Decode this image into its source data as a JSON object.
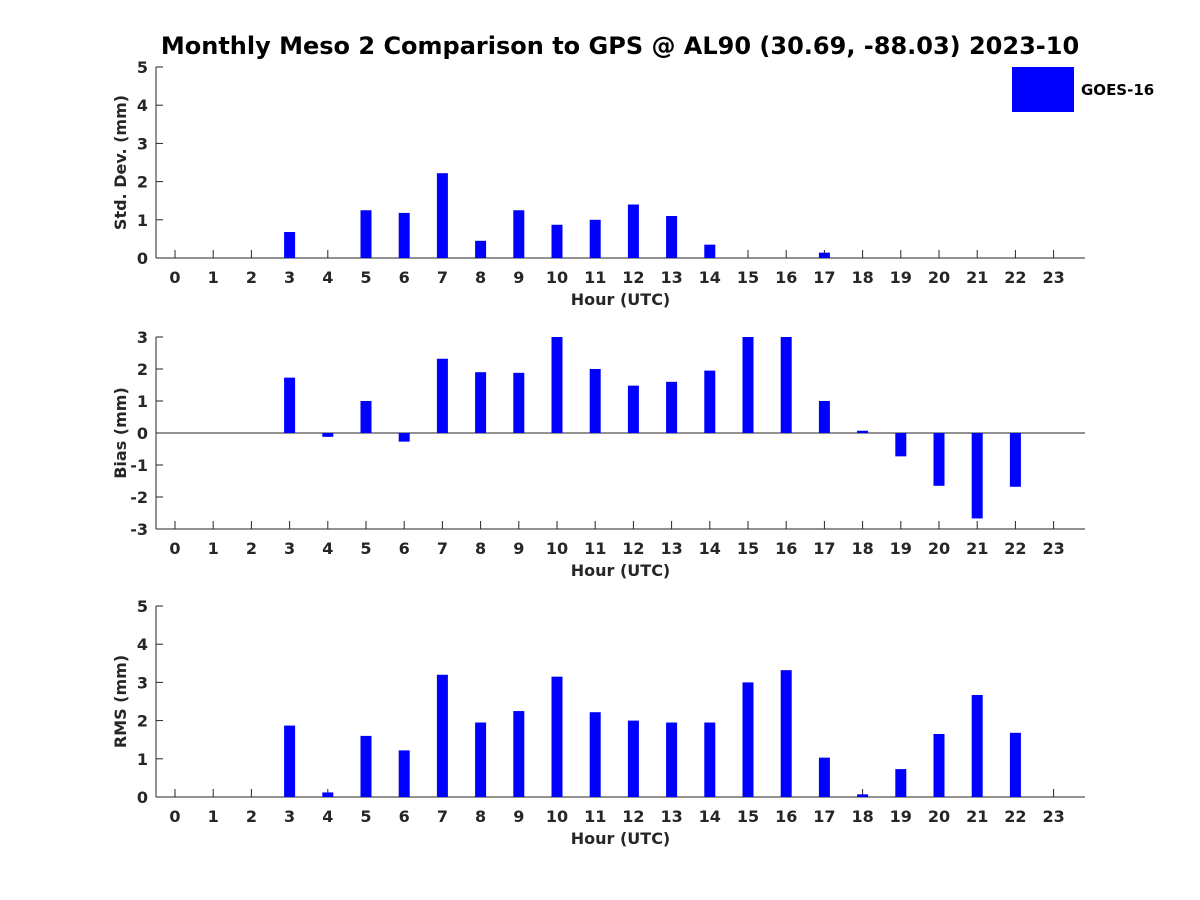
{
  "title": "Monthly Meso 2 Comparison to GPS @ AL90 (30.69, -88.03) 2023-10",
  "legend": {
    "label": "GOES-16",
    "placement": "top-right",
    "color": "#0000ff"
  },
  "colors": {
    "bar": "#0000ff",
    "axis": "#262626"
  },
  "chart_data": [
    {
      "type": "bar",
      "series": [
        {
          "name": "GOES-16"
        }
      ],
      "categories": [
        "0",
        "1",
        "2",
        "3",
        "4",
        "5",
        "6",
        "7",
        "8",
        "9",
        "10",
        "11",
        "12",
        "13",
        "14",
        "15",
        "16",
        "17",
        "18",
        "19",
        "20",
        "21",
        "22",
        "23"
      ],
      "values": [
        null,
        null,
        null,
        0.68,
        null,
        1.25,
        1.18,
        2.22,
        0.45,
        1.25,
        0.87,
        1.0,
        1.4,
        1.1,
        0.35,
        null,
        null,
        0.14,
        null,
        null,
        null,
        null,
        null,
        null
      ],
      "xlabel": "Hour (UTC)",
      "ylabel": "Std. Dev. (mm)",
      "ylim": [
        0,
        5
      ],
      "yticks": [
        "0",
        "1",
        "2",
        "3",
        "4",
        "5"
      ],
      "zero_line": false
    },
    {
      "type": "bar",
      "series": [
        {
          "name": "GOES-16"
        }
      ],
      "categories": [
        "0",
        "1",
        "2",
        "3",
        "4",
        "5",
        "6",
        "7",
        "8",
        "9",
        "10",
        "11",
        "12",
        "13",
        "14",
        "15",
        "16",
        "17",
        "18",
        "19",
        "20",
        "21",
        "22",
        "23"
      ],
      "values": [
        null,
        null,
        null,
        1.73,
        -0.12,
        1.0,
        -0.27,
        2.32,
        1.9,
        1.88,
        3.0,
        2.0,
        1.48,
        1.6,
        1.95,
        3.0,
        3.0,
        1.0,
        0.07,
        -0.73,
        -1.65,
        -2.67,
        -1.68,
        null
      ],
      "xlabel": "Hour (UTC)",
      "ylabel": "Bias (mm)",
      "ylim": [
        -3,
        3
      ],
      "yticks": [
        "-3",
        "-2",
        "-1",
        "0",
        "1",
        "2",
        "3"
      ],
      "zero_line": true
    },
    {
      "type": "bar",
      "series": [
        {
          "name": "GOES-16"
        }
      ],
      "categories": [
        "0",
        "1",
        "2",
        "3",
        "4",
        "5",
        "6",
        "7",
        "8",
        "9",
        "10",
        "11",
        "12",
        "13",
        "14",
        "15",
        "16",
        "17",
        "18",
        "19",
        "20",
        "21",
        "22",
        "23"
      ],
      "values": [
        null,
        null,
        null,
        1.87,
        0.12,
        1.6,
        1.22,
        3.2,
        1.95,
        2.25,
        3.15,
        2.22,
        2.0,
        1.95,
        1.95,
        3.0,
        3.32,
        1.03,
        0.07,
        0.73,
        1.65,
        2.67,
        1.68,
        null
      ],
      "xlabel": "Hour (UTC)",
      "ylabel": "RMS (mm)",
      "ylim": [
        0,
        5
      ],
      "yticks": [
        "0",
        "1",
        "2",
        "3",
        "4",
        "5"
      ],
      "zero_line": false
    }
  ]
}
